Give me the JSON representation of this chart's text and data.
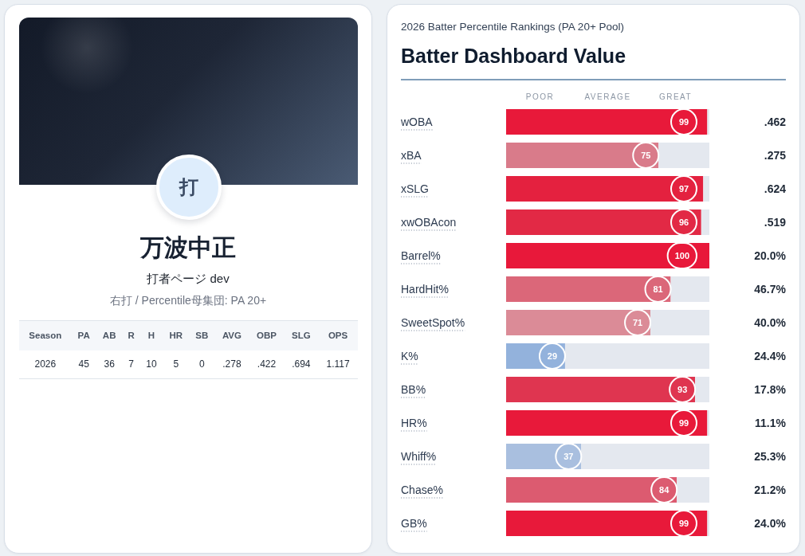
{
  "chart_data": [
    {
      "type": "other",
      "title": "万波中正",
      "subtitle": "打者ページ dev",
      "annotations": [
        "打",
        "右打 / Percentile母集団: PA 20+"
      ],
      "categories": [
        "Season",
        "PA",
        "AB",
        "R",
        "H",
        "HR",
        "SB",
        "AVG",
        "OBP",
        "SLG",
        "OPS"
      ],
      "value_labels": [
        "2026",
        "45",
        "36",
        "7",
        "10",
        "5",
        "0",
        ".278",
        ".422",
        ".694",
        "1.117"
      ]
    },
    {
      "type": "bar",
      "orientation": "horizontal",
      "stacked": true,
      "subtitle": "2026 Batter Percentile Rankings (PA 20+ Pool)",
      "title": "Batter Dashboard Value",
      "annotations": [
        "POOR",
        "AVERAGE",
        "GREAT"
      ],
      "categories": [
        "wOBA",
        "xBA",
        "xSLG",
        "xwOBAcon",
        "Barrel%",
        "HardHit%",
        "SweetSpot%",
        "K%",
        "BB%",
        "HR%",
        "Whiff%",
        "Chase%",
        "GB%"
      ],
      "y2_categories": [
        ".462",
        ".275",
        ".624",
        ".519",
        "20.0%",
        "46.7%",
        "40.0%",
        "24.4%",
        "17.8%",
        "11.1%",
        "25.3%",
        "21.2%",
        "24.0%"
      ],
      "series": [
        {
          "values": [
            99,
            75,
            97,
            96,
            100,
            81,
            71,
            29,
            93,
            99,
            37,
            84,
            99
          ],
          "colors": [
            "#e8193a",
            "#d97b8a",
            "#e4213f",
            "#e22945",
            "#e8183a",
            "#db6779",
            "#db8b97",
            "#93b2dc",
            "#df3550",
            "#e8193a",
            "#a9bfdf",
            "#dc5b70",
            "#e8193a"
          ],
          "value_labels": [
            "99",
            "75",
            "97",
            "96",
            "100",
            "81",
            "71",
            "29",
            "93",
            "99",
            "37",
            "84",
            "99"
          ]
        },
        {
          "values": [
            1,
            25,
            3,
            4,
            0,
            19,
            29,
            71,
            7,
            1,
            63,
            16,
            1
          ],
          "color": "#e4e8ef"
        }
      ],
      "xlim": [
        0,
        100
      ]
    }
  ]
}
